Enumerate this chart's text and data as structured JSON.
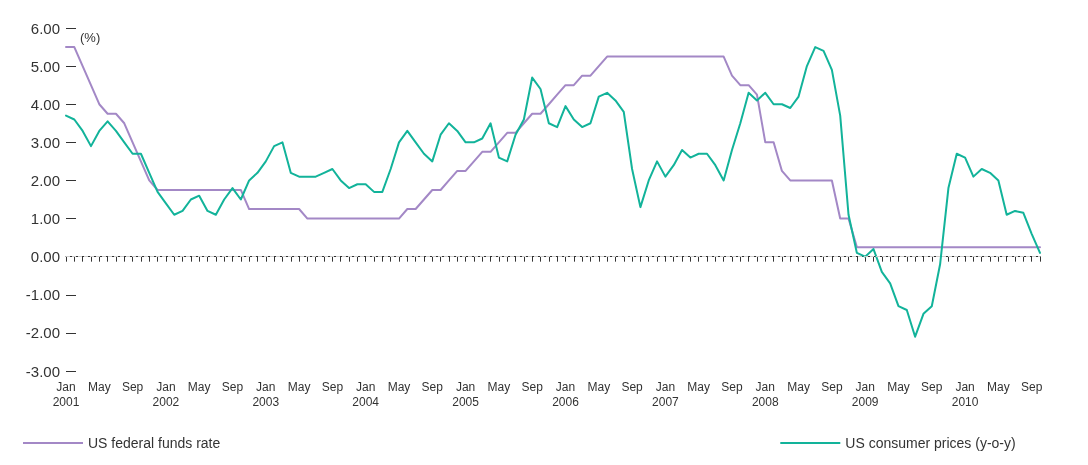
{
  "chart_data": {
    "type": "line",
    "ylabel": "(%)",
    "categories": [
      "Jan\n2001",
      null,
      null,
      null,
      "May",
      null,
      null,
      null,
      "Sep",
      null,
      null,
      null,
      "Jan\n2002",
      null,
      null,
      null,
      "May",
      null,
      null,
      null,
      "Sep",
      null,
      null,
      null,
      "Jan\n2003",
      null,
      null,
      null,
      "May",
      null,
      null,
      null,
      "Sep",
      null,
      null,
      null,
      "Jan\n2004",
      null,
      null,
      null,
      "May",
      null,
      null,
      null,
      "Sep",
      null,
      null,
      null,
      "Jan\n2005",
      null,
      null,
      null,
      "May",
      null,
      null,
      null,
      "Sep",
      null,
      null,
      null,
      "Jan\n2006",
      null,
      null,
      null,
      "May",
      null,
      null,
      null,
      "Sep",
      null,
      null,
      null,
      "Jan\n2007",
      null,
      null,
      null,
      "May",
      null,
      null,
      null,
      "Sep",
      null,
      null,
      null,
      "Jan\n2008",
      null,
      null,
      null,
      "May",
      null,
      null,
      null,
      "Sep",
      null,
      null,
      null,
      "Jan\n2009",
      null,
      null,
      null,
      "May",
      null,
      null,
      null,
      "Sep",
      null,
      null,
      null,
      "Jan\n2010",
      null,
      null,
      null,
      "May",
      null,
      null,
      null,
      "Sep",
      null
    ],
    "series": [
      {
        "name": "US federal funds rate",
        "color": "#a388c6",
        "values": [
          5.5,
          5.5,
          5.0,
          4.5,
          4.0,
          3.75,
          3.75,
          3.5,
          3.0,
          2.5,
          2.0,
          1.75,
          1.75,
          1.75,
          1.75,
          1.75,
          1.75,
          1.75,
          1.75,
          1.75,
          1.75,
          1.75,
          1.25,
          1.25,
          1.25,
          1.25,
          1.25,
          1.25,
          1.25,
          1.0,
          1.0,
          1.0,
          1.0,
          1.0,
          1.0,
          1.0,
          1.0,
          1.0,
          1.0,
          1.0,
          1.0,
          1.25,
          1.25,
          1.5,
          1.75,
          1.75,
          2.0,
          2.25,
          2.25,
          2.5,
          2.75,
          2.75,
          3.0,
          3.25,
          3.25,
          3.5,
          3.75,
          3.75,
          4.0,
          4.25,
          4.5,
          4.5,
          4.75,
          4.75,
          5.0,
          5.25,
          5.25,
          5.25,
          5.25,
          5.25,
          5.25,
          5.25,
          5.25,
          5.25,
          5.25,
          5.25,
          5.25,
          5.25,
          5.25,
          5.25,
          4.75,
          4.5,
          4.5,
          4.25,
          3.0,
          3.0,
          2.25,
          2.0,
          2.0,
          2.0,
          2.0,
          2.0,
          2.0,
          1.0,
          1.0,
          0.25,
          0.25,
          0.25,
          0.25,
          0.25,
          0.25,
          0.25,
          0.25,
          0.25,
          0.25,
          0.25,
          0.25,
          0.25,
          0.25,
          0.25,
          0.25,
          0.25,
          0.25,
          0.25,
          0.25,
          0.25,
          0.25,
          0.25
        ]
      },
      {
        "name": "US consumer prices (y-o-y)",
        "color": "#12b39a",
        "values": [
          3.7,
          3.6,
          3.3,
          2.9,
          3.3,
          3.55,
          3.3,
          3.0,
          2.7,
          2.7,
          2.2,
          1.7,
          1.4,
          1.1,
          1.2,
          1.5,
          1.6,
          1.2,
          1.1,
          1.5,
          1.8,
          1.5,
          2.0,
          2.2,
          2.5,
          2.9,
          3.0,
          2.2,
          2.1,
          2.1,
          2.1,
          2.2,
          2.3,
          2.0,
          1.8,
          1.9,
          1.9,
          1.7,
          1.7,
          2.3,
          3.0,
          3.3,
          3.0,
          2.7,
          2.5,
          3.2,
          3.5,
          3.3,
          3.0,
          3.0,
          3.1,
          3.5,
          2.6,
          2.5,
          3.2,
          3.6,
          4.7,
          4.4,
          3.5,
          3.4,
          3.95,
          3.6,
          3.4,
          3.5,
          4.2,
          4.3,
          4.1,
          3.8,
          2.3,
          1.3,
          2.0,
          2.5,
          2.1,
          2.4,
          2.8,
          2.6,
          2.7,
          2.7,
          2.4,
          2.0,
          2.8,
          3.5,
          4.3,
          4.1,
          4.3,
          4.0,
          4.0,
          3.9,
          4.2,
          5.0,
          5.5,
          5.4,
          4.9,
          3.7,
          1.1,
          0.1,
          0.0,
          0.2,
          -0.4,
          -0.7,
          -1.3,
          -1.4,
          -2.1,
          -1.5,
          -1.3,
          -0.2,
          1.8,
          2.7,
          2.6,
          2.1,
          2.3,
          2.2,
          2.0,
          1.1,
          1.2,
          1.15,
          0.6,
          0.1
        ]
      }
    ],
    "ylim": [
      -3,
      6
    ],
    "yticks": [
      {
        "value": -3,
        "label": "-3.00"
      },
      {
        "value": -2,
        "label": "-2.00"
      },
      {
        "value": -1,
        "label": "-1.00"
      },
      {
        "value": 0,
        "label": "0.00"
      },
      {
        "value": 1,
        "label": "1.00"
      },
      {
        "value": 2,
        "label": "2.00"
      },
      {
        "value": 3,
        "label": "3.00"
      },
      {
        "value": 4,
        "label": "4.00"
      },
      {
        "value": 5,
        "label": "5.00"
      },
      {
        "value": 6,
        "label": "6.00"
      }
    ],
    "ref_lines": [
      {
        "axis": "y",
        "value": 0,
        "color": "#cccccc",
        "line_style": "dashed"
      }
    ],
    "legend": "bottom",
    "grid": false,
    "marker": "none",
    "line_style": "solid"
  }
}
